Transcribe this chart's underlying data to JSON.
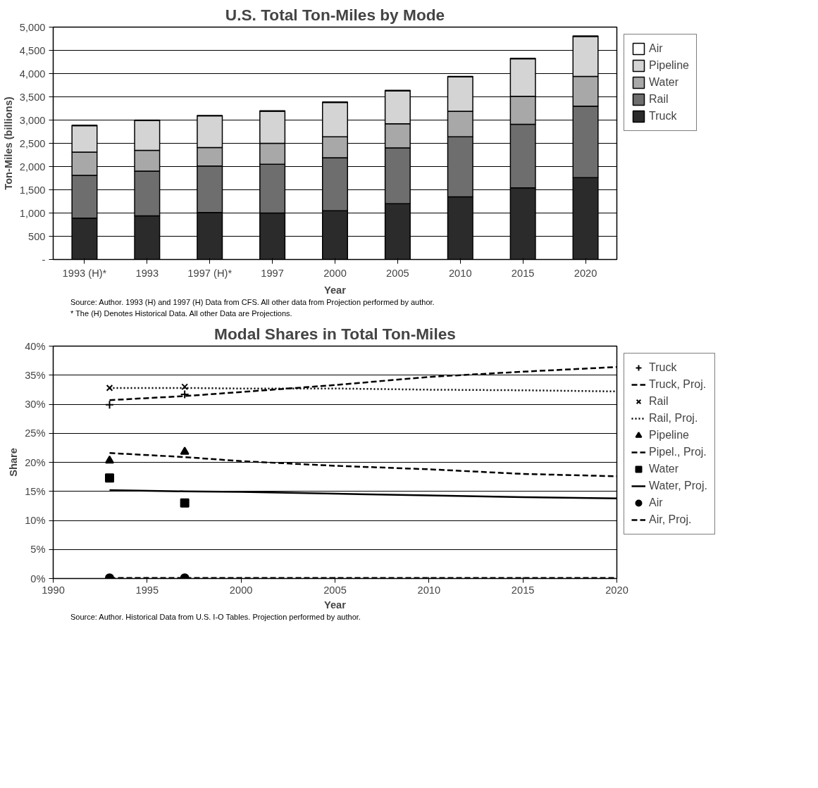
{
  "chart_data": [
    {
      "type": "bar",
      "title": "U.S. Total Ton-Miles by Mode",
      "xlabel": "Year",
      "ylabel": "Ton-Miles (billions)",
      "categories": [
        "1993 (H)*",
        "1993",
        "1997 (H)*",
        "1997",
        "2000",
        "2005",
        "2010",
        "2015",
        "2020"
      ],
      "stacked": true,
      "series": [
        {
          "name": "Truck",
          "color": "#2b2b2b",
          "values": [
            890,
            940,
            1010,
            1000,
            1050,
            1200,
            1350,
            1540,
            1760
          ]
        },
        {
          "name": "Rail",
          "color": "#6e6e6e",
          "values": [
            920,
            960,
            1000,
            1050,
            1140,
            1200,
            1290,
            1370,
            1540
          ]
        },
        {
          "name": "Water",
          "color": "#a8a8a8",
          "values": [
            500,
            450,
            400,
            450,
            450,
            520,
            550,
            600,
            640
          ]
        },
        {
          "name": "Pipeline",
          "color": "#d4d4d4",
          "values": [
            570,
            640,
            680,
            690,
            740,
            710,
            740,
            810,
            860
          ]
        },
        {
          "name": "Air",
          "color": "#ffffff",
          "values": [
            10,
            10,
            10,
            10,
            10,
            10,
            10,
            10,
            10
          ]
        }
      ],
      "ylim": [
        0,
        5000
      ],
      "yticks": [
        {
          "value": 0,
          "label": "-"
        },
        {
          "value": 500,
          "label": "500"
        },
        {
          "value": 1000,
          "label": "1,000"
        },
        {
          "value": 1500,
          "label": "1,500"
        },
        {
          "value": 2000,
          "label": "2,000"
        },
        {
          "value": 2500,
          "label": "2,500"
        },
        {
          "value": 3000,
          "label": "3,000"
        },
        {
          "value": 3500,
          "label": "3,500"
        },
        {
          "value": 4000,
          "label": "4,000"
        },
        {
          "value": 4500,
          "label": "4,500"
        },
        {
          "value": 5000,
          "label": "5,000"
        }
      ],
      "grid": "y",
      "legend": "right",
      "annotations": [
        "Source: Author. 1993 (H) and 1997 (H) Data from CFS. All other data from Projection performed by author.",
        "* The (H) Denotes Historical Data. All other Data are Projections."
      ]
    },
    {
      "type": "line",
      "title": "Modal Shares in Total Ton-Miles",
      "xlabel": "Year",
      "ylabel": "Share",
      "series": [
        {
          "name": "Truck",
          "type": "scatter",
          "marker": "cross",
          "color": "#000000",
          "x": [
            1993,
            1997
          ],
          "values": [
            29.9,
            31.7
          ]
        },
        {
          "name": "Truck, Proj.",
          "type": "line",
          "line_style": "dashed",
          "color": "#000000",
          "x": [
            1993,
            1997,
            2000,
            2005,
            2010,
            2015,
            2020
          ],
          "values": [
            30.7,
            31.4,
            32.1,
            33.3,
            34.7,
            35.6,
            36.4
          ]
        },
        {
          "name": "Rail",
          "type": "scatter",
          "marker": "x",
          "color": "#000000",
          "x": [
            1993,
            1997
          ],
          "values": [
            32.8,
            33.0
          ]
        },
        {
          "name": "Rail, Proj.",
          "type": "line",
          "line_style": "dotted",
          "color": "#000000",
          "x": [
            1993,
            1997,
            2000,
            2005,
            2010,
            2015,
            2020
          ],
          "values": [
            32.8,
            32.8,
            32.7,
            32.7,
            32.5,
            32.4,
            32.2
          ]
        },
        {
          "name": "Pipeline",
          "type": "scatter",
          "marker": "triangle",
          "color": "#000000",
          "x": [
            1993,
            1997
          ],
          "values": [
            20.3,
            21.8
          ]
        },
        {
          "name": "Pipel., Proj.",
          "type": "line",
          "line_style": "dashed",
          "color": "#000000",
          "x": [
            1993,
            1997,
            2000,
            2005,
            2010,
            2015,
            2020
          ],
          "values": [
            21.6,
            20.9,
            20.2,
            19.4,
            18.8,
            18.0,
            17.6
          ]
        },
        {
          "name": "Water",
          "type": "scatter",
          "marker": "square",
          "color": "#000000",
          "x": [
            1993,
            1997
          ],
          "values": [
            17.3,
            13.0
          ]
        },
        {
          "name": "Water, Proj.",
          "type": "line",
          "line_style": "solid",
          "color": "#000000",
          "x": [
            1993,
            1997,
            2000,
            2005,
            2010,
            2015,
            2020
          ],
          "values": [
            15.2,
            15.0,
            14.9,
            14.6,
            14.3,
            14.0,
            13.8
          ]
        },
        {
          "name": "Air",
          "type": "scatter",
          "marker": "circle",
          "color": "#000000",
          "x": [
            1993,
            1997
          ],
          "values": [
            0.1,
            0.1
          ]
        },
        {
          "name": "Air, Proj.",
          "type": "line",
          "line_style": "dashed",
          "color": "#000000",
          "x": [
            1993,
            1997,
            2000,
            2005,
            2010,
            2015,
            2020
          ],
          "values": [
            0.1,
            0.1,
            0.1,
            0.1,
            0.1,
            0.1,
            0.1
          ]
        }
      ],
      "xlim": [
        1990,
        2020
      ],
      "xticks": [
        1990,
        1995,
        2000,
        2005,
        2010,
        2015,
        2020
      ],
      "ylim": [
        0,
        40
      ],
      "yticks": [
        {
          "value": 0,
          "label": "0%"
        },
        {
          "value": 5,
          "label": "5%"
        },
        {
          "value": 10,
          "label": "10%"
        },
        {
          "value": 15,
          "label": "15%"
        },
        {
          "value": 20,
          "label": "20%"
        },
        {
          "value": 25,
          "label": "25%"
        },
        {
          "value": 30,
          "label": "30%"
        },
        {
          "value": 35,
          "label": "35%"
        },
        {
          "value": 40,
          "label": "40%"
        }
      ],
      "grid": "y",
      "legend": "right",
      "annotations": [
        "Source: Author. Historical Data from U.S. I-O Tables. Projection performed by author."
      ]
    }
  ]
}
